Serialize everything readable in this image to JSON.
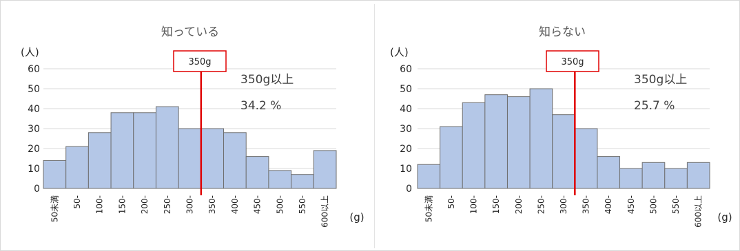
{
  "chart_data": [
    {
      "type": "bar",
      "title": "知っている",
      "ylabel": "(人)",
      "xlabel": "(g)",
      "ylim": [
        0,
        60
      ],
      "yticks": [
        "0",
        "10",
        "20",
        "30",
        "40",
        "50",
        "60"
      ],
      "categories": [
        "50未満",
        "50-",
        "100-",
        "150-",
        "200-",
        "250-",
        "300-",
        "350-",
        "400-",
        "450-",
        "500-",
        "550-",
        "600以上"
      ],
      "values": [
        14,
        21,
        28,
        38,
        38,
        41,
        30,
        30,
        28,
        16,
        9,
        7,
        19
      ],
      "reference": {
        "label": "350g",
        "value": 350
      },
      "annotations": [
        "350g以上",
        "34.2 %"
      ]
    },
    {
      "type": "bar",
      "title": "知らない",
      "ylabel": "(人)",
      "xlabel": "(g)",
      "ylim": [
        0,
        60
      ],
      "yticks": [
        "0",
        "10",
        "20",
        "30",
        "40",
        "50",
        "60"
      ],
      "categories": [
        "50未満",
        "50-",
        "100-",
        "150-",
        "200-",
        "250-",
        "300-",
        "350-",
        "400-",
        "450-",
        "500-",
        "550-",
        "600以上"
      ],
      "values": [
        12,
        31,
        43,
        47,
        46,
        50,
        37,
        30,
        16,
        10,
        13,
        10,
        13
      ],
      "reference": {
        "label": "350g",
        "value": 350
      },
      "annotations": [
        "350g以上",
        "25.7 %"
      ]
    }
  ],
  "colors": {
    "bar": "#b4c7e7",
    "reference": "#e00000"
  }
}
